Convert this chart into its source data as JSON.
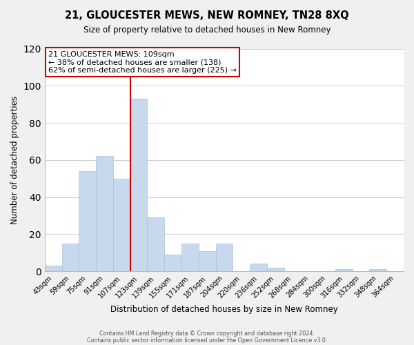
{
  "title": "21, GLOUCESTER MEWS, NEW ROMNEY, TN28 8XQ",
  "subtitle": "Size of property relative to detached houses in New Romney",
  "xlabel": "Distribution of detached houses by size in New Romney",
  "ylabel": "Number of detached properties",
  "bar_color": "#c8d9ee",
  "bar_edge_color": "#a8c0de",
  "bin_labels": [
    "43sqm",
    "59sqm",
    "75sqm",
    "91sqm",
    "107sqm",
    "123sqm",
    "139sqm",
    "155sqm",
    "171sqm",
    "187sqm",
    "204sqm",
    "220sqm",
    "236sqm",
    "252sqm",
    "268sqm",
    "284sqm",
    "300sqm",
    "316sqm",
    "332sqm",
    "348sqm",
    "364sqm"
  ],
  "bar_heights": [
    3,
    15,
    54,
    62,
    50,
    93,
    29,
    9,
    15,
    11,
    15,
    0,
    4,
    2,
    0,
    0,
    0,
    1,
    0,
    1,
    0
  ],
  "ylim": [
    0,
    120
  ],
  "yticks": [
    0,
    20,
    40,
    60,
    80,
    100,
    120
  ],
  "property_line_x": 4.5,
  "property_label": "21 GLOUCESTER MEWS: 109sqm",
  "annotation_line1": "← 38% of detached houses are smaller (138)",
  "annotation_line2": "62% of semi-detached houses are larger (225) →",
  "footer1": "Contains HM Land Registry data © Crown copyright and database right 2024.",
  "footer2": "Contains public sector information licensed under the Open Government Licence v3.0.",
  "background_color": "#f0f0f0",
  "plot_bg_color": "#ffffff",
  "grid_color": "#cccccc"
}
